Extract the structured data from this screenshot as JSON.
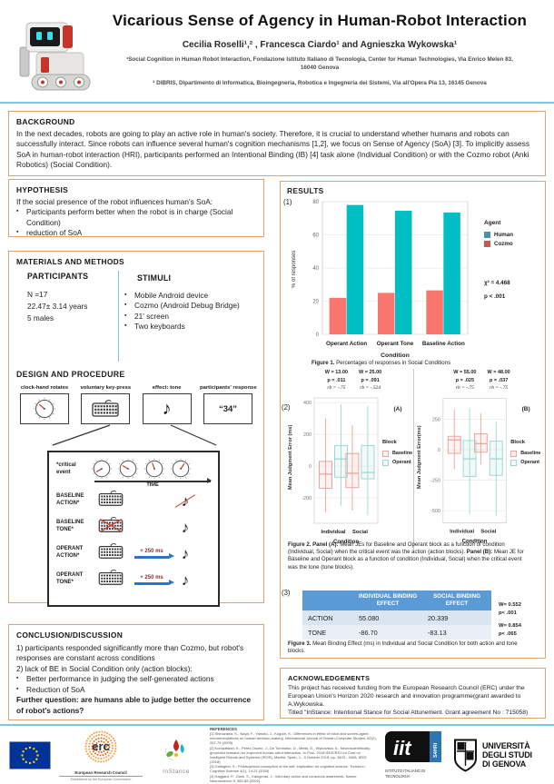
{
  "header": {
    "title": "Vicarious Sense of Agency in Human-Robot Interaction",
    "authors": "Cecilia Roselli¹,² , Francesca Ciardo¹ and Agnieszka Wykowska¹",
    "affiliation1": "¹Social Cognition in Human Robot Interaction, Fondazione Istituto Italiano di Tecnologia, Center for Human Technologies, Via Enrico Melen 83, 16040 Genova",
    "affiliation2": "² DIBRIS, Dipartimento di Informatica, Bioingegneria, Robotica e Ingegneria dei Sistemi, Via all'Opera Pia 13, 16145 Genova"
  },
  "background": {
    "heading": "BACKGROUND",
    "text": "In the next decades, robots are going to play an active role in human's society. Therefore, it is crucial to understand whether humans and robots can successfully interact. Since robots can influence several human's cognition mechanisms [1,2], we focus on Sense of Agency (SoA) [3]. To implicitly assess SoA in human-robot interaction (HRI), participants performed an Intentional Binding (IB) [4] task alone (Individual Condition) or with the Cozmo robot (Anki Robotics) (Social Condition)."
  },
  "hypothesis": {
    "heading": "HYPOTHESIS",
    "intro": "If the social presence of the robot influences human's SoA:",
    "bullets": [
      "Participants perform better when the robot is in charge (Social Condition)",
      "reduction of SoA"
    ]
  },
  "methods": {
    "heading": "MATERIALS AND METHODS",
    "participants_heading": "PARTICIPANTS",
    "participants_lines": [
      "N =17",
      "22.47± 3.14 years",
      "5 males"
    ],
    "stimuli_heading": "STIMULI",
    "stimuli_bullets": [
      "Mobile Android device",
      "Cozmo (Android Debug Bridge)",
      "21' screen",
      "Two keyboards"
    ],
    "design_heading": "DESIGN AND PROCEDURE",
    "steps": [
      {
        "label": "clock-hand rotates"
      },
      {
        "label": "voluntary key-press"
      },
      {
        "label": "effect: tone"
      },
      {
        "label": "participants' response",
        "text": "“34”"
      }
    ],
    "trial": {
      "critical_label_1": "*critical",
      "critical_label_2": "event",
      "time_label": "TIME",
      "rows": [
        {
          "label1": "BASELINE",
          "label2": "ACTION*",
          "delay": ""
        },
        {
          "label1": "BASELINE",
          "label2": "TONE*",
          "delay": ""
        },
        {
          "label1": "OPERANT",
          "label2": "ACTION*",
          "delay": "+ 250 ms"
        },
        {
          "label1": "OPERANT",
          "label2": "TONE*",
          "delay": "+ 250 ms"
        }
      ]
    }
  },
  "results": {
    "heading": "RESULTS",
    "panel_labels": [
      "(1)",
      "(2)",
      "(3)"
    ],
    "fig1": {
      "legend": [
        {
          "label": "Human",
          "color": "#4d8fb0"
        },
        {
          "label": "Cozmo",
          "color": "#cd5853"
        }
      ],
      "caption_label": "Figure 1.",
      "caption_text": " Percentages of responses in Social Conditions"
    },
    "fig2": {
      "legend_title": "Block",
      "caption_b1": "Figure 2. Panel (A):",
      "caption_t1": " Mean JEs for Baseline and Operant block as a function of condition (Individual, Social) when the critical event was the action (action blocks). ",
      "caption_b2": "Panel (B):",
      "caption_t2": " Mean JE for Baseline and Operant block as a function of condition (Individual, Social) when the critical event was the tone (tone blocks)."
    },
    "fig3_caption_label": "Figure 3.",
    "fig3_caption_text": " Mean Binding Effect (ms) in Individual and Social Condition for both action and tone blocks."
  },
  "conclusion": {
    "heading": "CONCLUSION/DISCUSSION",
    "line1": "1) participants responded significantly more than Cozmo, but robot's responses are constant across conditions",
    "line2": "2) lack of BE in Social Condition only (action blocks):",
    "bullets": [
      "Better performance in judging the self-generated actions",
      "Reduction of SoA"
    ],
    "question": "Further question: are humans able to judge better the occurrence of robot's actions?"
  },
  "acknowledgements": {
    "heading": "ACKNOWLEDGEMENTS",
    "text1": "This project has received funding from the European Research Council (ERC) under the European Union's Horizon 2020 research and innovation programme(grant awarded to A.Wykowska.",
    "text2": "Titled \"InStance: Intentional Stance for Social Attunement. Grant agreement No : 715058)"
  },
  "footer": {
    "erc_label": "erc",
    "erc_sub": "European Research Council",
    "erc_sub2": "Established by the European Commission",
    "instance_label": "InStance",
    "iit_label": "iit",
    "iit_strip": "S4HRI",
    "iit_sub": "ISTITUTO ITALIANO DI TECNOLOGIA",
    "unige_lines": [
      "UNIVERSITÀ",
      "DEGLI STUDI",
      "DI GENOVA"
    ],
    "references_heading": "REFERENCES",
    "references": [
      "[1] Shinozawa, K., Naya, F., Yamato, J., Kogure, K.: Differences in effect of robot and screen-agent recommendations on human decision-making. International Journal of Human-Computer Studies, 62(2), 267-79 (2005)",
      "[2] Kompatsiari, K., Pérez-Osorio, J., De Tommaso, D., Metta, G., Wykowska, A.: Neuroscientifically-grounded research for improved human-robot interaction. In Proc. 2018 IEEE/RSJ Int Conf on Intelligent Robots and Systems (IROS), Madrid, Spain, 1 - 5 October 2018, pp. 3403 - 3408, IEEE (2018)",
      "[3] Gallagher, S.: Philosophical conception of the self: implication for cognitive science. Trends in Cognitive Science 4(1), 14-21 (2000)",
      "[4] Haggard, P., Clark, S., Kalogeras, J.: Voluntary action and conscious awareness. Nature Neuroscience 5, 382-85 (2002)"
    ]
  },
  "colors": {
    "box_border": "#dfa271",
    "accent_line": "#7cc7e8",
    "bar_cozmo": "#F8766D",
    "bar_human": "#00BFC4",
    "table_header_bg": "#5b9bd5"
  },
  "chart_data": [
    {
      "type": "bar",
      "id": "fig1",
      "title": "Percentages of responses in Social Conditions",
      "categories": [
        "Operant Action",
        "Operant Tone",
        "Baseline Action"
      ],
      "series": [
        {
          "name": "Cozmo",
          "color": "#F8766D",
          "values": [
            22,
            25,
            26.5
          ]
        },
        {
          "name": "Human",
          "color": "#00BFC4",
          "values": [
            78,
            74.5,
            73.5
          ]
        }
      ],
      "xlabel": "Condition",
      "ylabel": "% of responses",
      "ylim": [
        0,
        80
      ],
      "yticks": [
        0,
        20,
        40,
        60,
        80
      ],
      "grid": true,
      "legend_title": "Agent",
      "legend_position": "right",
      "annotations": [
        "χ² = 4.468",
        "p < .001"
      ]
    },
    {
      "type": "boxplot",
      "id": "fig2A",
      "panel": "(A)",
      "categories": [
        "Individual",
        "Social"
      ],
      "xlabel": "Condition",
      "ylabel": "Mean Judgment Error (ms)",
      "ylim": [
        -360,
        430
      ],
      "yticks": [
        -200,
        0,
        200,
        400
      ],
      "series": [
        {
          "name": "Baseline",
          "color": "#efa29c",
          "boxes": [
            {
              "low": -290,
              "q1": -140,
              "median": -50,
              "q3": 30,
              "high": 300
            },
            {
              "low": -280,
              "q1": -135,
              "median": -45,
              "q3": 80,
              "high": 260
            }
          ]
        },
        {
          "name": "Operant",
          "color": "#9ed7d2",
          "boxes": [
            {
              "low": -250,
              "q1": -70,
              "median": 45,
              "q3": 130,
              "high": 390
            },
            {
              "low": -310,
              "q1": -80,
              "median": -40,
              "q3": 130,
              "high": 380
            }
          ]
        }
      ],
      "stats": [
        [
          "W = 13.00",
          "p = .011",
          "rb = -.75"
        ],
        [
          "W = 25.00",
          "p = .091",
          "rb = -.524"
        ]
      ]
    },
    {
      "type": "boxplot",
      "id": "fig2B",
      "panel": "(B)",
      "categories": [
        "Individual",
        "Social"
      ],
      "xlabel": "Condition",
      "ylabel": "Mean Judgment Error(ms)",
      "ylim": [
        -600,
        420
      ],
      "yticks": [
        -500,
        -250,
        0,
        250
      ],
      "series": [
        {
          "name": "Baseline",
          "color": "#efa29c",
          "boxes": [
            {
              "low": -160,
              "q1": -30,
              "median": 80,
              "q3": 110,
              "high": 330
            },
            {
              "low": -120,
              "q1": -20,
              "median": 50,
              "q3": 130,
              "high": 300
            }
          ]
        },
        {
          "name": "Operant",
          "color": "#9ed7d2",
          "boxes": [
            {
              "low": -530,
              "q1": -220,
              "median": -75,
              "q3": 75,
              "high": 340
            },
            {
              "low": -540,
              "q1": -210,
              "median": -75,
              "q3": 70,
              "high": 230
            }
          ]
        }
      ],
      "stats": [
        [
          "W = 55.00",
          "p = .025",
          "rb = -.75"
        ],
        [
          "W = 48.00",
          "p = .037",
          "rb = -.75"
        ]
      ]
    },
    {
      "type": "table",
      "id": "fig3",
      "headers": [
        "",
        "INDIVIDUAL BINDING EFFECT",
        "SOCIAL BINDING EFFECT"
      ],
      "rows": [
        [
          "ACTION",
          "55.080",
          "20.339"
        ],
        [
          "TONE",
          "-86.70",
          "-83.13"
        ]
      ],
      "row_stats": [
        [
          "W= 0.552",
          "p< .001"
        ],
        [
          "W= 0.854",
          "p< .065"
        ]
      ]
    }
  ]
}
